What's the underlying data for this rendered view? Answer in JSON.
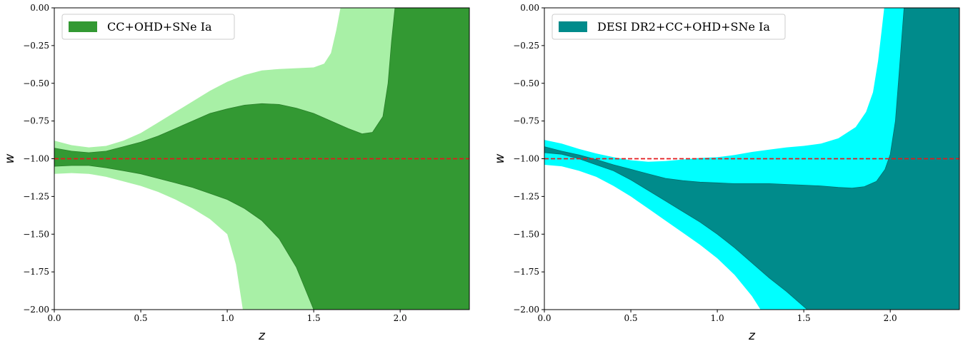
{
  "chart_data": [
    {
      "type": "area",
      "xlabel": "z",
      "ylabel": "w",
      "xlim": [
        0,
        2.4
      ],
      "ylim": [
        -2.0,
        0.0
      ],
      "xticks": [
        "0.0",
        "0.5",
        "1.0",
        "1.5",
        "2.0"
      ],
      "yticks": [
        "0.00",
        "−0.25",
        "−0.50",
        "−0.75",
        "−1.00",
        "−1.25",
        "−1.50",
        "−1.75",
        "−2.00"
      ],
      "legend": {
        "label": "CC+OHD+SNe Ia",
        "placement": "top-left"
      },
      "reference_line": {
        "y": -1.0,
        "color": "#e31a1c",
        "style": "dashed"
      },
      "colors": {
        "inner": "#339933",
        "inner_edge": "#2a7f2a",
        "outer": "#a8f0a6",
        "legend_patch": "#339933"
      },
      "outer_band": {
        "upper": [
          [
            0,
            -0.88
          ],
          [
            0.1,
            -0.91
          ],
          [
            0.2,
            -0.925
          ],
          [
            0.3,
            -0.915
          ],
          [
            0.4,
            -0.88
          ],
          [
            0.5,
            -0.83
          ],
          [
            0.6,
            -0.76
          ],
          [
            0.7,
            -0.69
          ],
          [
            0.8,
            -0.62
          ],
          [
            0.9,
            -0.55
          ],
          [
            1.0,
            -0.49
          ],
          [
            1.1,
            -0.445
          ],
          [
            1.2,
            -0.415
          ],
          [
            1.3,
            -0.405
          ],
          [
            1.4,
            -0.4
          ],
          [
            1.5,
            -0.395
          ],
          [
            1.56,
            -0.37
          ],
          [
            1.6,
            -0.3
          ],
          [
            1.63,
            -0.15
          ],
          [
            1.655,
            0.0
          ],
          [
            2.4,
            0.0
          ]
        ],
        "lower": [
          [
            0,
            -1.1
          ],
          [
            0.1,
            -1.095
          ],
          [
            0.2,
            -1.1
          ],
          [
            0.3,
            -1.12
          ],
          [
            0.4,
            -1.15
          ],
          [
            0.5,
            -1.18
          ],
          [
            0.6,
            -1.22
          ],
          [
            0.7,
            -1.27
          ],
          [
            0.8,
            -1.33
          ],
          [
            0.9,
            -1.4
          ],
          [
            1.0,
            -1.5
          ],
          [
            1.05,
            -1.7
          ],
          [
            1.09,
            -2.0
          ],
          [
            2.4,
            -2.0
          ]
        ]
      },
      "inner_band": {
        "upper": [
          [
            0,
            -0.93
          ],
          [
            0.1,
            -0.95
          ],
          [
            0.2,
            -0.96
          ],
          [
            0.3,
            -0.95
          ],
          [
            0.4,
            -0.92
          ],
          [
            0.5,
            -0.89
          ],
          [
            0.6,
            -0.85
          ],
          [
            0.7,
            -0.8
          ],
          [
            0.8,
            -0.75
          ],
          [
            0.9,
            -0.7
          ],
          [
            1.0,
            -0.67
          ],
          [
            1.1,
            -0.645
          ],
          [
            1.2,
            -0.635
          ],
          [
            1.3,
            -0.64
          ],
          [
            1.4,
            -0.665
          ],
          [
            1.5,
            -0.7
          ],
          [
            1.6,
            -0.75
          ],
          [
            1.7,
            -0.8
          ],
          [
            1.78,
            -0.835
          ],
          [
            1.84,
            -0.825
          ],
          [
            1.9,
            -0.72
          ],
          [
            1.93,
            -0.5
          ],
          [
            1.95,
            -0.22
          ],
          [
            1.97,
            0.0
          ],
          [
            2.4,
            0.0
          ]
        ],
        "lower": [
          [
            0,
            -1.05
          ],
          [
            0.1,
            -1.045
          ],
          [
            0.2,
            -1.045
          ],
          [
            0.3,
            -1.06
          ],
          [
            0.4,
            -1.08
          ],
          [
            0.5,
            -1.1
          ],
          [
            0.6,
            -1.13
          ],
          [
            0.7,
            -1.16
          ],
          [
            0.8,
            -1.19
          ],
          [
            0.9,
            -1.23
          ],
          [
            1.0,
            -1.27
          ],
          [
            1.1,
            -1.33
          ],
          [
            1.2,
            -1.41
          ],
          [
            1.3,
            -1.53
          ],
          [
            1.4,
            -1.72
          ],
          [
            1.45,
            -1.86
          ],
          [
            1.5,
            -2.0
          ],
          [
            2.4,
            -2.0
          ]
        ]
      }
    },
    {
      "type": "area",
      "xlabel": "z",
      "ylabel": "w",
      "xlim": [
        0,
        2.4
      ],
      "ylim": [
        -2.0,
        0.0
      ],
      "xticks": [
        "0.0",
        "0.5",
        "1.0",
        "1.5",
        "2.0"
      ],
      "yticks": [
        "0.00",
        "−0.25",
        "−0.50",
        "−0.75",
        "−1.00",
        "−1.25",
        "−1.50",
        "−1.75",
        "−2.00"
      ],
      "legend": {
        "label": "DESI DR2+CC+OHD+SNe Ia",
        "placement": "top-left"
      },
      "reference_line": {
        "y": -1.0,
        "color": "#e31a1c",
        "style": "dashed"
      },
      "colors": {
        "inner": "#008b8b",
        "inner_edge": "#007070",
        "outer": "#00ffff",
        "legend_patch": "#008b8b"
      },
      "outer_band": {
        "upper": [
          [
            0,
            -0.875
          ],
          [
            0.1,
            -0.9
          ],
          [
            0.2,
            -0.935
          ],
          [
            0.3,
            -0.965
          ],
          [
            0.4,
            -0.99
          ],
          [
            0.5,
            -1.01
          ],
          [
            0.6,
            -1.02
          ],
          [
            0.7,
            -1.015
          ],
          [
            0.8,
            -1.005
          ],
          [
            0.9,
            -0.995
          ],
          [
            1.0,
            -0.99
          ],
          [
            1.1,
            -0.975
          ],
          [
            1.2,
            -0.955
          ],
          [
            1.3,
            -0.94
          ],
          [
            1.4,
            -0.925
          ],
          [
            1.5,
            -0.915
          ],
          [
            1.6,
            -0.9
          ],
          [
            1.7,
            -0.865
          ],
          [
            1.8,
            -0.79
          ],
          [
            1.86,
            -0.69
          ],
          [
            1.9,
            -0.56
          ],
          [
            1.93,
            -0.35
          ],
          [
            1.95,
            -0.15
          ],
          [
            1.965,
            0.0
          ],
          [
            2.4,
            0.0
          ]
        ],
        "lower": [
          [
            0,
            -1.04
          ],
          [
            0.1,
            -1.05
          ],
          [
            0.2,
            -1.08
          ],
          [
            0.3,
            -1.12
          ],
          [
            0.4,
            -1.18
          ],
          [
            0.5,
            -1.25
          ],
          [
            0.6,
            -1.33
          ],
          [
            0.7,
            -1.41
          ],
          [
            0.8,
            -1.49
          ],
          [
            0.9,
            -1.57
          ],
          [
            1.0,
            -1.66
          ],
          [
            1.1,
            -1.77
          ],
          [
            1.2,
            -1.91
          ],
          [
            1.25,
            -2.0
          ],
          [
            2.4,
            -2.0
          ]
        ]
      },
      "inner_band": {
        "upper": [
          [
            0,
            -0.92
          ],
          [
            0.1,
            -0.95
          ],
          [
            0.2,
            -0.975
          ],
          [
            0.3,
            -1.005
          ],
          [
            0.4,
            -1.04
          ],
          [
            0.5,
            -1.07
          ],
          [
            0.6,
            -1.1
          ],
          [
            0.7,
            -1.13
          ],
          [
            0.8,
            -1.145
          ],
          [
            0.9,
            -1.155
          ],
          [
            1.0,
            -1.16
          ],
          [
            1.1,
            -1.165
          ],
          [
            1.2,
            -1.165
          ],
          [
            1.3,
            -1.165
          ],
          [
            1.4,
            -1.17
          ],
          [
            1.5,
            -1.175
          ],
          [
            1.6,
            -1.18
          ],
          [
            1.7,
            -1.19
          ],
          [
            1.78,
            -1.195
          ],
          [
            1.85,
            -1.185
          ],
          [
            1.92,
            -1.15
          ],
          [
            1.97,
            -1.07
          ],
          [
            2.0,
            -0.97
          ],
          [
            2.03,
            -0.75
          ],
          [
            2.05,
            -0.45
          ],
          [
            2.07,
            -0.15
          ],
          [
            2.08,
            0.0
          ],
          [
            2.4,
            0.0
          ]
        ],
        "lower": [
          [
            0,
            -0.96
          ],
          [
            0.1,
            -0.97
          ],
          [
            0.2,
            -1.0
          ],
          [
            0.3,
            -1.04
          ],
          [
            0.4,
            -1.08
          ],
          [
            0.5,
            -1.14
          ],
          [
            0.6,
            -1.21
          ],
          [
            0.7,
            -1.28
          ],
          [
            0.8,
            -1.35
          ],
          [
            0.9,
            -1.42
          ],
          [
            1.0,
            -1.5
          ],
          [
            1.1,
            -1.59
          ],
          [
            1.2,
            -1.69
          ],
          [
            1.3,
            -1.79
          ],
          [
            1.4,
            -1.88
          ],
          [
            1.47,
            -1.95
          ],
          [
            1.52,
            -2.0
          ],
          [
            2.4,
            -2.0
          ]
        ]
      }
    }
  ]
}
